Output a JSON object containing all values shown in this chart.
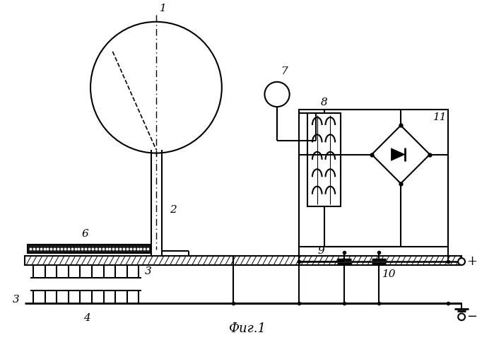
{
  "title": "Фиг.1",
  "bg_color": "#ffffff",
  "line_color": "#000000",
  "fig_width": 6.99,
  "fig_height": 4.98,
  "dpi": 100
}
